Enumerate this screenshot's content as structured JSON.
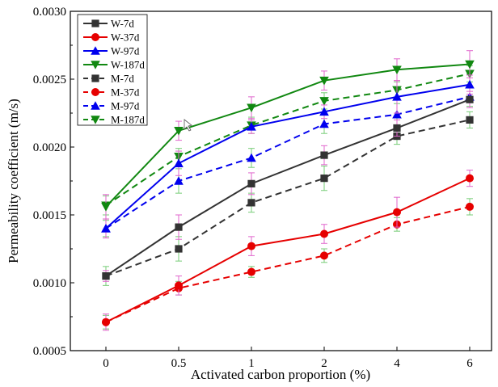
{
  "chart_data": {
    "type": "line",
    "title": "",
    "xlabel": "Activated carbon proportion (%)",
    "ylabel": "Permeability coefficient (m/s)",
    "categories": [
      "0",
      "0.5",
      "1",
      "2",
      "4",
      "6"
    ],
    "y_ticks": [
      "0.0005",
      "0.0010",
      "0.0015",
      "0.0020",
      "0.0025",
      "0.0030"
    ],
    "ylim": [
      0.0005,
      0.003
    ],
    "grid": false,
    "legend_position": "top-left",
    "series": [
      {
        "name": "W-7d",
        "color": "#333333",
        "marker": "square",
        "dashed": false,
        "error_color": "#e066cc",
        "values": [
          0.00105,
          0.00141,
          0.00173,
          0.00194,
          0.00214,
          0.00235
        ],
        "errors": [
          4e-05,
          9e-05,
          8e-05,
          7e-05,
          6e-05,
          6e-05
        ]
      },
      {
        "name": "W-37d",
        "color": "#e60000",
        "marker": "circle",
        "dashed": false,
        "error_color": "#e066cc",
        "values": [
          0.00071,
          0.00098,
          0.00127,
          0.00136,
          0.00152,
          0.00177
        ],
        "errors": [
          6e-05,
          7e-05,
          7e-05,
          7e-05,
          0.00011,
          6e-05
        ]
      },
      {
        "name": "W-97d",
        "color": "#0000ee",
        "marker": "triangle-up",
        "dashed": false,
        "error_color": "#e066cc",
        "values": [
          0.0014,
          0.00188,
          0.00215,
          0.00226,
          0.00237,
          0.00246
        ],
        "errors": [
          7e-05,
          9e-05,
          5e-05,
          5e-05,
          0.00012,
          7e-05
        ]
      },
      {
        "name": "W-187d",
        "color": "#118811",
        "marker": "triangle-down",
        "dashed": false,
        "error_color": "#e066cc",
        "values": [
          0.00156,
          0.00212,
          0.00229,
          0.00249,
          0.00257,
          0.00261
        ],
        "errors": [
          9e-05,
          7e-05,
          8e-05,
          7e-05,
          8e-05,
          0.0001
        ]
      },
      {
        "name": "M-7d",
        "color": "#333333",
        "marker": "square",
        "dashed": true,
        "error_color": "#77cc77",
        "values": [
          0.00105,
          0.00125,
          0.00159,
          0.00177,
          0.00208,
          0.0022
        ],
        "errors": [
          7e-05,
          9e-05,
          7e-05,
          9e-05,
          6e-05,
          6e-05
        ]
      },
      {
        "name": "M-37d",
        "color": "#e60000",
        "marker": "circle",
        "dashed": true,
        "error_color": "#77cc77",
        "values": [
          0.00071,
          0.00096,
          0.00108,
          0.0012,
          0.00143,
          0.00156
        ],
        "errors": [
          5e-05,
          5e-05,
          4e-05,
          5e-05,
          5e-05,
          6e-05
        ]
      },
      {
        "name": "M-97d",
        "color": "#0000ee",
        "marker": "triangle-up",
        "dashed": true,
        "error_color": "#77cc77",
        "values": [
          0.0014,
          0.00175,
          0.00192,
          0.00217,
          0.00224,
          0.00237
        ],
        "errors": [
          6e-05,
          9e-05,
          7e-05,
          7e-05,
          8e-05,
          7e-05
        ]
      },
      {
        "name": "M-187d",
        "color": "#118811",
        "marker": "triangle-down",
        "dashed": true,
        "error_color": "#77cc77",
        "values": [
          0.00157,
          0.00193,
          0.00216,
          0.00234,
          0.00242,
          0.00254
        ],
        "errors": [
          7e-05,
          6e-05,
          6e-05,
          6e-05,
          6e-05,
          6e-05
        ]
      }
    ]
  }
}
